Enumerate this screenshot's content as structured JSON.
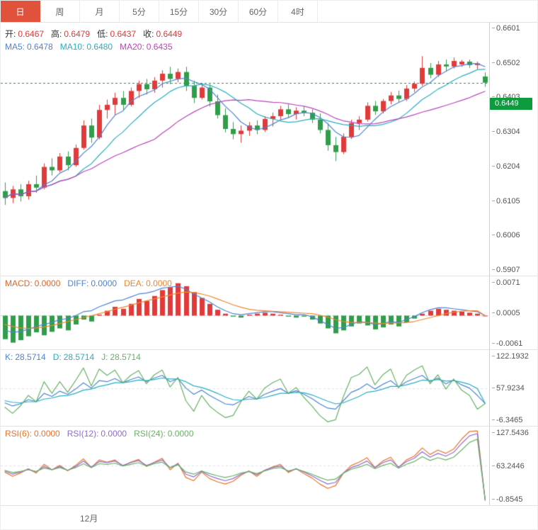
{
  "toolbar": {
    "tabs": [
      {
        "label": "日",
        "active": true
      },
      {
        "label": "周",
        "active": false
      },
      {
        "label": "月",
        "active": false
      },
      {
        "label": "5分",
        "active": false
      },
      {
        "label": "15分",
        "active": false
      },
      {
        "label": "30分",
        "active": false
      },
      {
        "label": "60分",
        "active": false
      },
      {
        "label": "4时",
        "active": false
      }
    ]
  },
  "main": {
    "legend": {
      "ohlc": [
        {
          "label": "开:",
          "value": "0.6467"
        },
        {
          "label": "高:",
          "value": "0.6479"
        },
        {
          "label": "低:",
          "value": "0.6437"
        },
        {
          "label": "收:",
          "value": "0.6449"
        }
      ],
      "ma": [
        {
          "label": "MA5:",
          "value": "0.6478"
        },
        {
          "label": "MA10:",
          "value": "0.6480"
        },
        {
          "label": "MA20:",
          "value": "0.6435"
        }
      ]
    },
    "axis": [
      "0.6601",
      "0.6502",
      "0.6403",
      "0.6304",
      "0.6204",
      "0.6105",
      "0.6006",
      "0.5907"
    ],
    "price_tag": "0.6449"
  },
  "macd": {
    "legend": [
      {
        "label": "MACD:",
        "value": "0.0000"
      },
      {
        "label": "DIFF:",
        "value": "0.0000"
      },
      {
        "label": "DEA:",
        "value": "0.0000"
      }
    ],
    "axis": [
      "0.0071",
      "0.0005",
      "-0.0061"
    ]
  },
  "kdj": {
    "legend": [
      {
        "label": "K:",
        "value": "28.5714"
      },
      {
        "label": "D:",
        "value": "28.5714"
      },
      {
        "label": "J:",
        "value": "28.5714"
      }
    ],
    "axis": [
      "122.1932",
      "57.9234",
      "-6.3465"
    ]
  },
  "rsi": {
    "legend": [
      {
        "label": "RSI(6):",
        "value": "0.0000"
      },
      {
        "label": "RSI(12):",
        "value": "0.0000"
      },
      {
        "label": "RSI(24):",
        "value": "0.0000"
      }
    ],
    "axis": [
      "127.5436",
      "63.2446",
      "-0.8545"
    ]
  },
  "xaxis": {
    "label": "12月"
  },
  "colors": {
    "up": "#e03a3a",
    "down": "#2f9e4a",
    "ma5": "#4f83d3",
    "ma10": "#27aec1",
    "ma20": "#bb44bb",
    "price": "#0c9c3e",
    "price_tag_bg": "#0c9c3e",
    "diff": "#4f83d3",
    "dea": "#f0862c",
    "macd_label": "#e0662a",
    "k": "#4f83d3",
    "d": "#27aec1",
    "j": "#66b266",
    "rsi6": "#e8742c",
    "rsi12": "#8f6bd0",
    "rsi24": "#66b266",
    "tab_active": "#e0523c"
  },
  "chart_data": [
    {
      "type": "candlestick",
      "name": "daily-kline",
      "period": "日",
      "current_price": 0.6449,
      "ylim": [
        0.5907,
        0.6601
      ],
      "ylim_draw": [
        0.589,
        0.6625
      ],
      "ma_periods": [
        5,
        10,
        20
      ],
      "x_month_label": "12月",
      "ohlc": [
        [
          0.6135,
          0.616,
          0.6095,
          0.6115
        ],
        [
          0.6115,
          0.615,
          0.61,
          0.614
        ],
        [
          0.614,
          0.6155,
          0.6105,
          0.612
        ],
        [
          0.612,
          0.6165,
          0.611,
          0.6155
        ],
        [
          0.6155,
          0.618,
          0.613,
          0.6145
        ],
        [
          0.6145,
          0.6215,
          0.614,
          0.6205
        ],
        [
          0.6205,
          0.623,
          0.618,
          0.6195
        ],
        [
          0.6195,
          0.6245,
          0.619,
          0.6235
        ],
        [
          0.6235,
          0.625,
          0.6195,
          0.621
        ],
        [
          0.621,
          0.627,
          0.6205,
          0.626
        ],
        [
          0.626,
          0.634,
          0.6255,
          0.6325
        ],
        [
          0.6325,
          0.6345,
          0.6275,
          0.629
        ],
        [
          0.629,
          0.6385,
          0.6285,
          0.637
        ],
        [
          0.637,
          0.64,
          0.6345,
          0.6385
        ],
        [
          0.6385,
          0.642,
          0.6355,
          0.6405
        ],
        [
          0.6405,
          0.6425,
          0.637,
          0.6385
        ],
        [
          0.6385,
          0.6435,
          0.638,
          0.6425
        ],
        [
          0.6425,
          0.6455,
          0.6405,
          0.6445
        ],
        [
          0.6445,
          0.646,
          0.6415,
          0.643
        ],
        [
          0.643,
          0.6465,
          0.642,
          0.6455
        ],
        [
          0.6455,
          0.6485,
          0.6435,
          0.6475
        ],
        [
          0.6475,
          0.6495,
          0.6445,
          0.646
        ],
        [
          0.646,
          0.649,
          0.645,
          0.648
        ],
        [
          0.648,
          0.6495,
          0.6425,
          0.644
        ],
        [
          0.644,
          0.6455,
          0.639,
          0.6405
        ],
        [
          0.6405,
          0.6445,
          0.64,
          0.6435
        ],
        [
          0.6435,
          0.6445,
          0.638,
          0.6395
        ],
        [
          0.6395,
          0.6415,
          0.6345,
          0.6355
        ],
        [
          0.6355,
          0.6375,
          0.6305,
          0.6315
        ],
        [
          0.6315,
          0.6335,
          0.6285,
          0.63
        ],
        [
          0.63,
          0.6325,
          0.6275,
          0.631
        ],
        [
          0.631,
          0.6335,
          0.6295,
          0.6325
        ],
        [
          0.6325,
          0.634,
          0.63,
          0.6312
        ],
        [
          0.6312,
          0.6352,
          0.6306,
          0.6344
        ],
        [
          0.6344,
          0.6362,
          0.6322,
          0.6352
        ],
        [
          0.6352,
          0.6382,
          0.6342,
          0.6372
        ],
        [
          0.6372,
          0.6386,
          0.6348,
          0.6358
        ],
        [
          0.6358,
          0.6378,
          0.6342,
          0.6368
        ],
        [
          0.6368,
          0.638,
          0.6352,
          0.6362
        ],
        [
          0.6362,
          0.6372,
          0.6332,
          0.6342
        ],
        [
          0.6342,
          0.636,
          0.6302,
          0.6312
        ],
        [
          0.6312,
          0.6332,
          0.6252,
          0.6268
        ],
        [
          0.6268,
          0.6292,
          0.6222,
          0.6248
        ],
        [
          0.6248,
          0.6302,
          0.6242,
          0.6292
        ],
        [
          0.6292,
          0.6342,
          0.6286,
          0.6332
        ],
        [
          0.6332,
          0.6352,
          0.6312,
          0.6342
        ],
        [
          0.6342,
          0.6392,
          0.6336,
          0.6382
        ],
        [
          0.6382,
          0.6396,
          0.6356,
          0.6366
        ],
        [
          0.6366,
          0.6402,
          0.636,
          0.6396
        ],
        [
          0.6396,
          0.6422,
          0.6386,
          0.6412
        ],
        [
          0.6412,
          0.6426,
          0.6392,
          0.6402
        ],
        [
          0.6402,
          0.6442,
          0.6396,
          0.6432
        ],
        [
          0.6432,
          0.6452,
          0.6422,
          0.6446
        ],
        [
          0.6446,
          0.6526,
          0.644,
          0.6492
        ],
        [
          0.6492,
          0.6506,
          0.6462,
          0.6472
        ],
        [
          0.6472,
          0.6512,
          0.6466,
          0.6502
        ],
        [
          0.6502,
          0.6516,
          0.6482,
          0.6496
        ],
        [
          0.6496,
          0.6522,
          0.649,
          0.6512
        ],
        [
          0.6502,
          0.6515,
          0.6495,
          0.651
        ],
        [
          0.651,
          0.6516,
          0.6492,
          0.65
        ],
        [
          0.65,
          0.651,
          0.6488,
          0.6505
        ],
        [
          0.6467,
          0.6479,
          0.6437,
          0.6449
        ]
      ]
    },
    {
      "type": "bar",
      "name": "MACD",
      "ylim": [
        -0.0061,
        0.0071
      ],
      "ylim_draw": [
        -0.007,
        0.008
      ],
      "hist": [
        -0.0048,
        -0.0055,
        -0.005,
        -0.0042,
        -0.0034,
        -0.004,
        -0.0033,
        -0.0026,
        -0.003,
        -0.0018,
        -0.0008,
        -0.0012,
        0.0002,
        0.001,
        0.0018,
        0.0014,
        0.0024,
        0.0034,
        0.003,
        0.004,
        0.0052,
        0.0058,
        0.0066,
        0.006,
        0.0048,
        0.0036,
        0.0024,
        0.0012,
        0.0004,
        -0.0002,
        -0.0004,
        0.0002,
        0.0004,
        0.0006,
        0.0004,
        0.0002,
        -0.0002,
        -0.0004,
        -0.0002,
        -0.0008,
        -0.0016,
        -0.0026,
        -0.0036,
        -0.003,
        -0.0022,
        -0.0016,
        -0.002,
        -0.0028,
        -0.0024,
        -0.0018,
        -0.0022,
        -0.0014,
        -0.0006,
        0.0004,
        0.001,
        0.0014,
        0.0012,
        0.001,
        0.0008,
        0.0006,
        0.0004,
        0.0
      ],
      "diff": [
        -0.003,
        -0.0034,
        -0.0032,
        -0.0028,
        -0.0022,
        -0.0018,
        -0.0014,
        -0.0008,
        -0.0006,
        0.0,
        0.0008,
        0.001,
        0.0018,
        0.0024,
        0.003,
        0.0032,
        0.0038,
        0.0044,
        0.0046,
        0.005,
        0.0056,
        0.0058,
        0.006,
        0.0054,
        0.0044,
        0.0036,
        0.0028,
        0.0018,
        0.001,
        0.0004,
        0.0002,
        0.0004,
        0.0006,
        0.0008,
        0.0008,
        0.0006,
        0.0004,
        0.0002,
        0.0002,
        -0.0002,
        -0.001,
        -0.0018,
        -0.0026,
        -0.0024,
        -0.0018,
        -0.0012,
        -0.0014,
        -0.0018,
        -0.0016,
        -0.0012,
        -0.0014,
        -0.0008,
        -0.0002,
        0.0006,
        0.0012,
        0.0016,
        0.0016,
        0.0014,
        0.0012,
        0.001,
        0.0008,
        0.0
      ],
      "dea": [
        -0.0018,
        -0.0022,
        -0.0025,
        -0.0026,
        -0.0025,
        -0.0023,
        -0.002,
        -0.0016,
        -0.0012,
        -0.0008,
        -0.0004,
        0.0,
        0.0004,
        0.0008,
        0.0013,
        0.0017,
        0.0021,
        0.0026,
        0.003,
        0.0034,
        0.0038,
        0.0042,
        0.0046,
        0.0048,
        0.0047,
        0.0044,
        0.004,
        0.0034,
        0.0028,
        0.0022,
        0.0017,
        0.0013,
        0.0011,
        0.001,
        0.0009,
        0.0008,
        0.0007,
        0.0006,
        0.0005,
        0.0004,
        0.0001,
        -0.0003,
        -0.0008,
        -0.0012,
        -0.0014,
        -0.0014,
        -0.0014,
        -0.0015,
        -0.0016,
        -0.0015,
        -0.0015,
        -0.0014,
        -0.0012,
        -0.0008,
        -0.0004,
        0.0,
        0.0004,
        0.0007,
        0.0009,
        0.001,
        0.001,
        0.0
      ]
    },
    {
      "type": "line",
      "name": "KDJ",
      "ylim": [
        -6.3465,
        122.1932
      ],
      "ylim_draw": [
        -15,
        130
      ],
      "mid_line": 57.9234,
      "series": [
        {
          "name": "K",
          "values": [
            30,
            24,
            28,
            36,
            32,
            48,
            42,
            52,
            46,
            56,
            68,
            58,
            72,
            70,
            76,
            68,
            74,
            79,
            70,
            77,
            82,
            70,
            76,
            58,
            46,
            54,
            44,
            36,
            28,
            26,
            34,
            42,
            37,
            46,
            52,
            57,
            48,
            53,
            46,
            38,
            28,
            20,
            18,
            34,
            50,
            56,
            66,
            56,
            65,
            72,
            60,
            70,
            76,
            82,
            70,
            77,
            66,
            73,
            64,
            58,
            44,
            28.5714
          ]
        },
        {
          "name": "D",
          "values": [
            34,
            31,
            30,
            32,
            32,
            37,
            39,
            43,
            44,
            48,
            54,
            56,
            61,
            64,
            68,
            68,
            70,
            73,
            72,
            74,
            77,
            75,
            75,
            70,
            62,
            59,
            54,
            48,
            41,
            36,
            35,
            37,
            37,
            40,
            44,
            48,
            48,
            50,
            49,
            45,
            39,
            33,
            28,
            30,
            36,
            42,
            50,
            52,
            56,
            61,
            61,
            64,
            68,
            73,
            72,
            74,
            71,
            72,
            69,
            65,
            57,
            28.5714
          ]
        },
        {
          "name": "J",
          "values": [
            22,
            10,
            24,
            44,
            32,
            70,
            48,
            70,
            50,
            72,
            96,
            62,
            94,
            82,
            92,
            68,
            82,
            91,
            66,
            83,
            92,
            60,
            78,
            34,
            14,
            44,
            24,
            12,
            2,
            6,
            32,
            52,
            37,
            58,
            68,
            75,
            48,
            59,
            40,
            24,
            6,
            -6,
            -2,
            42,
            78,
            84,
            98,
            64,
            83,
            94,
            58,
            82,
            92,
            100,
            66,
            83,
            56,
            75,
            54,
            44,
            18,
            28.5714
          ]
        }
      ]
    },
    {
      "type": "line",
      "name": "RSI",
      "ylim": [
        -0.8545,
        127.5436
      ],
      "ylim_draw": [
        -10,
        135
      ],
      "mid_line": 63.2446,
      "series": [
        {
          "name": "RSI6",
          "values": [
            52,
            44,
            50,
            58,
            50,
            66,
            56,
            64,
            54,
            64,
            76,
            60,
            74,
            70,
            74,
            63,
            70,
            75,
            62,
            70,
            77,
            56,
            68,
            42,
            36,
            52,
            40,
            34,
            30,
            35,
            46,
            54,
            44,
            55,
            61,
            66,
            51,
            58,
            49,
            41,
            30,
            22,
            27,
            50,
            64,
            70,
            78,
            60,
            72,
            79,
            60,
            74,
            81,
            96,
            84,
            92,
            86,
            94,
            112,
            126,
            127,
            0
          ]
        },
        {
          "name": "RSI12",
          "values": [
            54,
            48,
            52,
            57,
            52,
            62,
            56,
            62,
            55,
            62,
            72,
            61,
            71,
            69,
            72,
            64,
            69,
            73,
            64,
            69,
            74,
            60,
            67,
            48,
            43,
            53,
            45,
            40,
            36,
            40,
            48,
            53,
            47,
            55,
            60,
            63,
            53,
            58,
            52,
            45,
            37,
            30,
            33,
            50,
            60,
            65,
            72,
            60,
            69,
            74,
            61,
            71,
            77,
            89,
            79,
            86,
            81,
            88,
            104,
            118,
            122,
            0
          ]
        },
        {
          "name": "RSI24",
          "values": [
            55,
            51,
            53,
            56,
            53,
            59,
            56,
            60,
            55,
            60,
            67,
            60,
            67,
            66,
            68,
            63,
            66,
            69,
            63,
            67,
            70,
            60,
            65,
            52,
            48,
            54,
            49,
            45,
            42,
            45,
            50,
            53,
            49,
            54,
            58,
            60,
            54,
            57,
            53,
            48,
            42,
            37,
            39,
            50,
            57,
            61,
            66,
            58,
            64,
            68,
            59,
            66,
            71,
            80,
            73,
            78,
            74,
            79,
            92,
            106,
            112,
            0
          ]
        }
      ]
    }
  ]
}
